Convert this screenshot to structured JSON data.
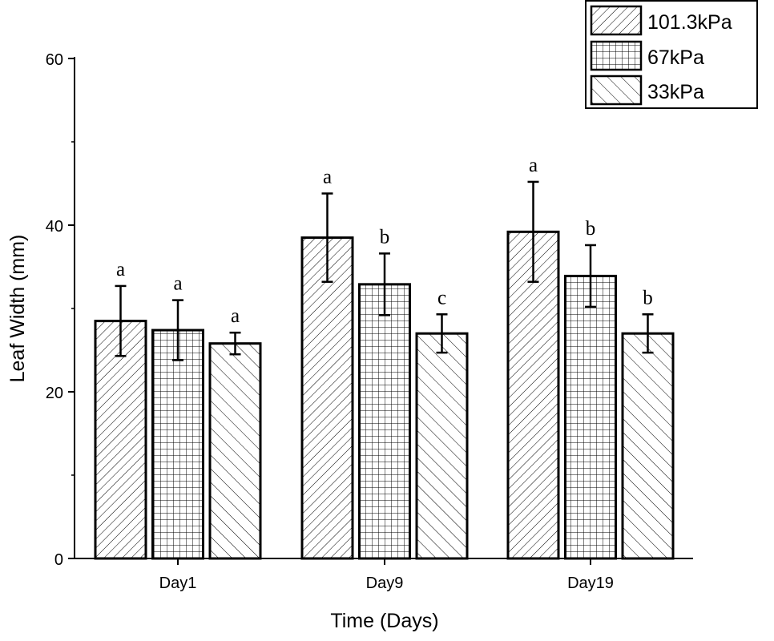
{
  "chart_data": {
    "type": "bar",
    "title": "",
    "xlabel": "Time (Days)",
    "ylabel": "Leaf Width (mm)",
    "ylim": [
      0,
      60
    ],
    "yticks": [
      "0",
      "20",
      "40",
      "60"
    ],
    "categories": [
      "Day1",
      "Day9",
      "Day19"
    ],
    "legend_position": "top-right",
    "grid": false,
    "series": [
      {
        "name": "101.3kPa",
        "pattern": "diagonal-right",
        "values": [
          28.5,
          38.5,
          39.2
        ],
        "errors": [
          4.2,
          5.3,
          6.0
        ],
        "letters": [
          "a",
          "a",
          "a"
        ]
      },
      {
        "name": "67kPa",
        "pattern": "grid",
        "values": [
          27.4,
          32.9,
          33.9
        ],
        "errors": [
          3.6,
          3.7,
          3.7
        ],
        "letters": [
          "a",
          "b",
          "b"
        ]
      },
      {
        "name": "33kPa",
        "pattern": "diagonal-left",
        "values": [
          25.8,
          27.0,
          27.0
        ],
        "errors": [
          1.3,
          2.3,
          2.3
        ],
        "letters": [
          "a",
          "c",
          "b"
        ]
      }
    ]
  }
}
